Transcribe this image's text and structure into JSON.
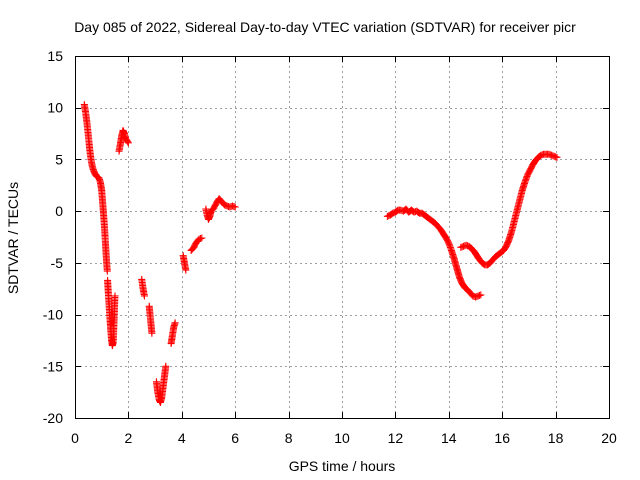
{
  "chart_data": {
    "type": "scatter",
    "title": "Day 085 of 2022, Sidereal Day-to-day VTEC variation (SDTVAR) for receiver picr",
    "xlabel": "GPS time / hours",
    "ylabel": "SDTVAR / TECUs",
    "xlim": [
      0,
      20
    ],
    "ylim": [
      -20,
      15
    ],
    "xticks": [
      0,
      2,
      4,
      6,
      8,
      10,
      12,
      14,
      16,
      18,
      20
    ],
    "yticks": [
      -20,
      -15,
      -10,
      -5,
      0,
      5,
      10,
      15
    ],
    "grid": true,
    "marker": "plus",
    "color": "#ff0000",
    "series": [
      {
        "name": "SDTVAR",
        "segments": [
          [
            [
              0.35,
              10.3
            ],
            [
              0.4,
              9.5
            ],
            [
              0.45,
              8.5
            ],
            [
              0.5,
              7.3
            ],
            [
              0.55,
              6.0
            ],
            [
              0.6,
              5.0
            ],
            [
              0.65,
              4.3
            ],
            [
              0.7,
              3.9
            ],
            [
              0.75,
              3.6
            ],
            [
              0.8,
              3.4
            ],
            [
              0.85,
              3.3
            ],
            [
              0.9,
              3.2
            ],
            [
              0.95,
              2.8
            ],
            [
              1.0,
              2.0
            ],
            [
              1.03,
              1.0
            ],
            [
              1.06,
              0.0
            ],
            [
              1.09,
              -1.0
            ],
            [
              1.12,
              -2.2
            ],
            [
              1.15,
              -3.5
            ],
            [
              1.18,
              -4.8
            ],
            [
              1.21,
              -5.8
            ]
          ],
          [
            [
              1.22,
              -6.7
            ],
            [
              1.25,
              -8.0
            ],
            [
              1.28,
              -9.2
            ],
            [
              1.31,
              -10.4
            ],
            [
              1.34,
              -11.5
            ],
            [
              1.37,
              -12.5
            ],
            [
              1.4,
              -13.0
            ],
            [
              1.43,
              -12.7
            ],
            [
              1.45,
              -11.5
            ],
            [
              1.47,
              -10.0
            ],
            [
              1.49,
              -8.5
            ],
            [
              1.5,
              -8.2
            ]
          ],
          [
            [
              1.65,
              5.8
            ],
            [
              1.7,
              6.5
            ],
            [
              1.75,
              7.3
            ],
            [
              1.8,
              7.8
            ],
            [
              1.85,
              7.5
            ],
            [
              1.9,
              7.0
            ],
            [
              1.95,
              6.8
            ],
            [
              2.0,
              6.6
            ]
          ],
          [
            [
              2.5,
              -6.6
            ],
            [
              2.55,
              -7.5
            ],
            [
              2.6,
              -8.2
            ]
          ],
          [
            [
              2.78,
              -9.2
            ],
            [
              2.83,
              -10.5
            ],
            [
              2.88,
              -11.8
            ]
          ],
          [
            [
              3.05,
              -16.5
            ],
            [
              3.1,
              -17.5
            ],
            [
              3.15,
              -18.2
            ],
            [
              3.2,
              -18.5
            ],
            [
              3.25,
              -18.0
            ],
            [
              3.3,
              -17.0
            ],
            [
              3.35,
              -16.0
            ],
            [
              3.4,
              -15.0
            ]
          ],
          [
            [
              3.6,
              -12.8
            ],
            [
              3.65,
              -12.0
            ],
            [
              3.7,
              -11.2
            ],
            [
              3.75,
              -10.8
            ]
          ],
          [
            [
              4.05,
              -4.3
            ],
            [
              4.1,
              -5.0
            ],
            [
              4.15,
              -5.7
            ]
          ],
          [
            [
              4.35,
              -3.8
            ],
            [
              4.45,
              -3.5
            ],
            [
              4.55,
              -3.0
            ],
            [
              4.65,
              -2.7
            ],
            [
              4.75,
              -2.6
            ]
          ],
          [
            [
              4.9,
              0.2
            ],
            [
              4.95,
              -0.4
            ],
            [
              5.0,
              -0.8
            ],
            [
              5.05,
              -0.5
            ],
            [
              5.1,
              0.0
            ],
            [
              5.2,
              0.3
            ],
            [
              5.3,
              0.8
            ],
            [
              5.4,
              1.2
            ],
            [
              5.5,
              0.9
            ],
            [
              5.6,
              0.6
            ],
            [
              5.7,
              0.5
            ],
            [
              5.8,
              0.4
            ],
            [
              5.9,
              0.5
            ],
            [
              6.0,
              0.4
            ]
          ],
          [
            [
              11.7,
              -0.5
            ],
            [
              11.8,
              -0.4
            ],
            [
              11.9,
              -0.2
            ],
            [
              12.0,
              -0.1
            ],
            [
              12.1,
              0.1
            ],
            [
              12.2,
              0.1
            ],
            [
              12.3,
              0.0
            ],
            [
              12.4,
              0.2
            ],
            [
              12.5,
              -0.1
            ],
            [
              12.6,
              0.1
            ],
            [
              12.7,
              -0.1
            ],
            [
              12.8,
              0.0
            ],
            [
              12.9,
              -0.2
            ],
            [
              13.0,
              -0.2
            ],
            [
              13.1,
              -0.4
            ],
            [
              13.2,
              -0.6
            ],
            [
              13.3,
              -0.8
            ],
            [
              13.4,
              -1.0
            ],
            [
              13.5,
              -1.2
            ],
            [
              13.6,
              -1.5
            ],
            [
              13.7,
              -1.8
            ],
            [
              13.8,
              -2.2
            ],
            [
              13.9,
              -2.6
            ],
            [
              14.0,
              -3.1
            ],
            [
              14.1,
              -3.8
            ],
            [
              14.2,
              -4.6
            ],
            [
              14.3,
              -5.5
            ],
            [
              14.4,
              -6.4
            ],
            [
              14.5,
              -7.0
            ],
            [
              14.6,
              -7.4
            ],
            [
              14.7,
              -7.6
            ],
            [
              14.8,
              -7.9
            ],
            [
              14.9,
              -8.2
            ],
            [
              15.0,
              -8.3
            ],
            [
              15.1,
              -8.2
            ],
            [
              15.2,
              -8.1
            ]
          ],
          [
            [
              14.45,
              -3.5
            ],
            [
              14.55,
              -3.4
            ],
            [
              14.65,
              -3.3
            ],
            [
              14.75,
              -3.4
            ],
            [
              14.85,
              -3.6
            ],
            [
              14.95,
              -3.9
            ],
            [
              15.05,
              -4.3
            ],
            [
              15.15,
              -4.7
            ],
            [
              15.25,
              -5.0
            ],
            [
              15.35,
              -5.2
            ],
            [
              15.45,
              -5.2
            ],
            [
              15.55,
              -5.0
            ],
            [
              15.65,
              -4.7
            ],
            [
              15.75,
              -4.4
            ],
            [
              15.85,
              -4.2
            ],
            [
              15.95,
              -4.0
            ],
            [
              16.05,
              -3.8
            ],
            [
              16.15,
              -3.4
            ],
            [
              16.25,
              -2.8
            ],
            [
              16.35,
              -2.0
            ],
            [
              16.45,
              -1.0
            ],
            [
              16.55,
              0.0
            ],
            [
              16.65,
              1.0
            ],
            [
              16.75,
              2.0
            ],
            [
              16.85,
              2.8
            ],
            [
              16.95,
              3.5
            ],
            [
              17.05,
              4.0
            ],
            [
              17.15,
              4.5
            ],
            [
              17.25,
              4.9
            ],
            [
              17.35,
              5.2
            ],
            [
              17.45,
              5.4
            ],
            [
              17.55,
              5.5
            ],
            [
              17.65,
              5.5
            ],
            [
              17.75,
              5.5
            ],
            [
              17.85,
              5.4
            ],
            [
              17.95,
              5.3
            ],
            [
              18.05,
              5.2
            ]
          ]
        ]
      }
    ]
  }
}
